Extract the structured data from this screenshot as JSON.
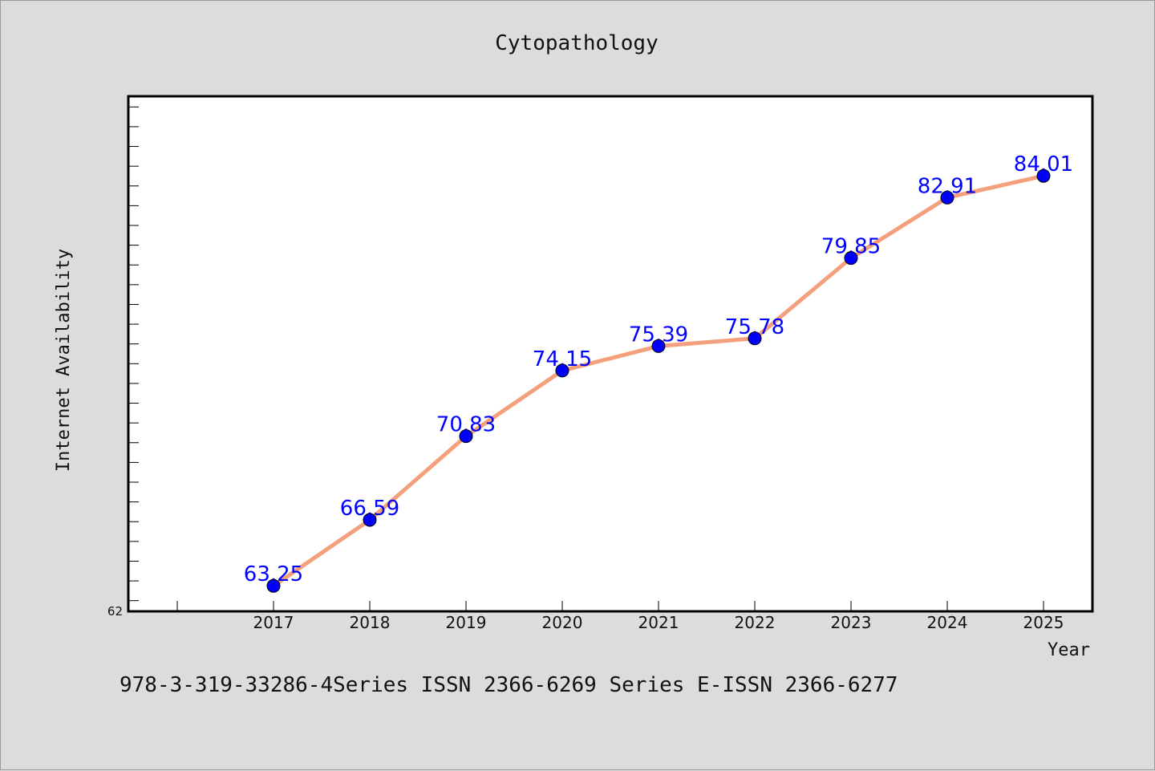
{
  "chart_data": {
    "type": "line",
    "title": "Cytopathology",
    "xlabel": "Year",
    "ylabel": "Internet Availability",
    "categories": [
      "2017",
      "2018",
      "2019",
      "2020",
      "2021",
      "2022",
      "2023",
      "2024",
      "2025"
    ],
    "series": [
      {
        "values": [
          63.25,
          66.59,
          70.83,
          74.15,
          75.39,
          75.78,
          79.85,
          82.91,
          84.01
        ],
        "data_labels": [
          "63.25",
          "66.59",
          "70.83",
          "74.15",
          "75.39",
          "75.78",
          "79.85",
          "82.91",
          "84.01"
        ],
        "line_color": "#f4a07c",
        "marker_color": "#0000ff"
      }
    ],
    "y_tick_labels": [
      "62"
    ],
    "ylim": [
      62,
      88
    ],
    "grid": false,
    "legend": "none"
  },
  "footer": {
    "text": "978-3-319-33286-4Series ISSN 2366-6269 Series E-ISSN 2366-6277"
  },
  "colors": {
    "background": "#dcdcdc",
    "plot_background": "#ffffff",
    "data_label": "#0000ff"
  }
}
